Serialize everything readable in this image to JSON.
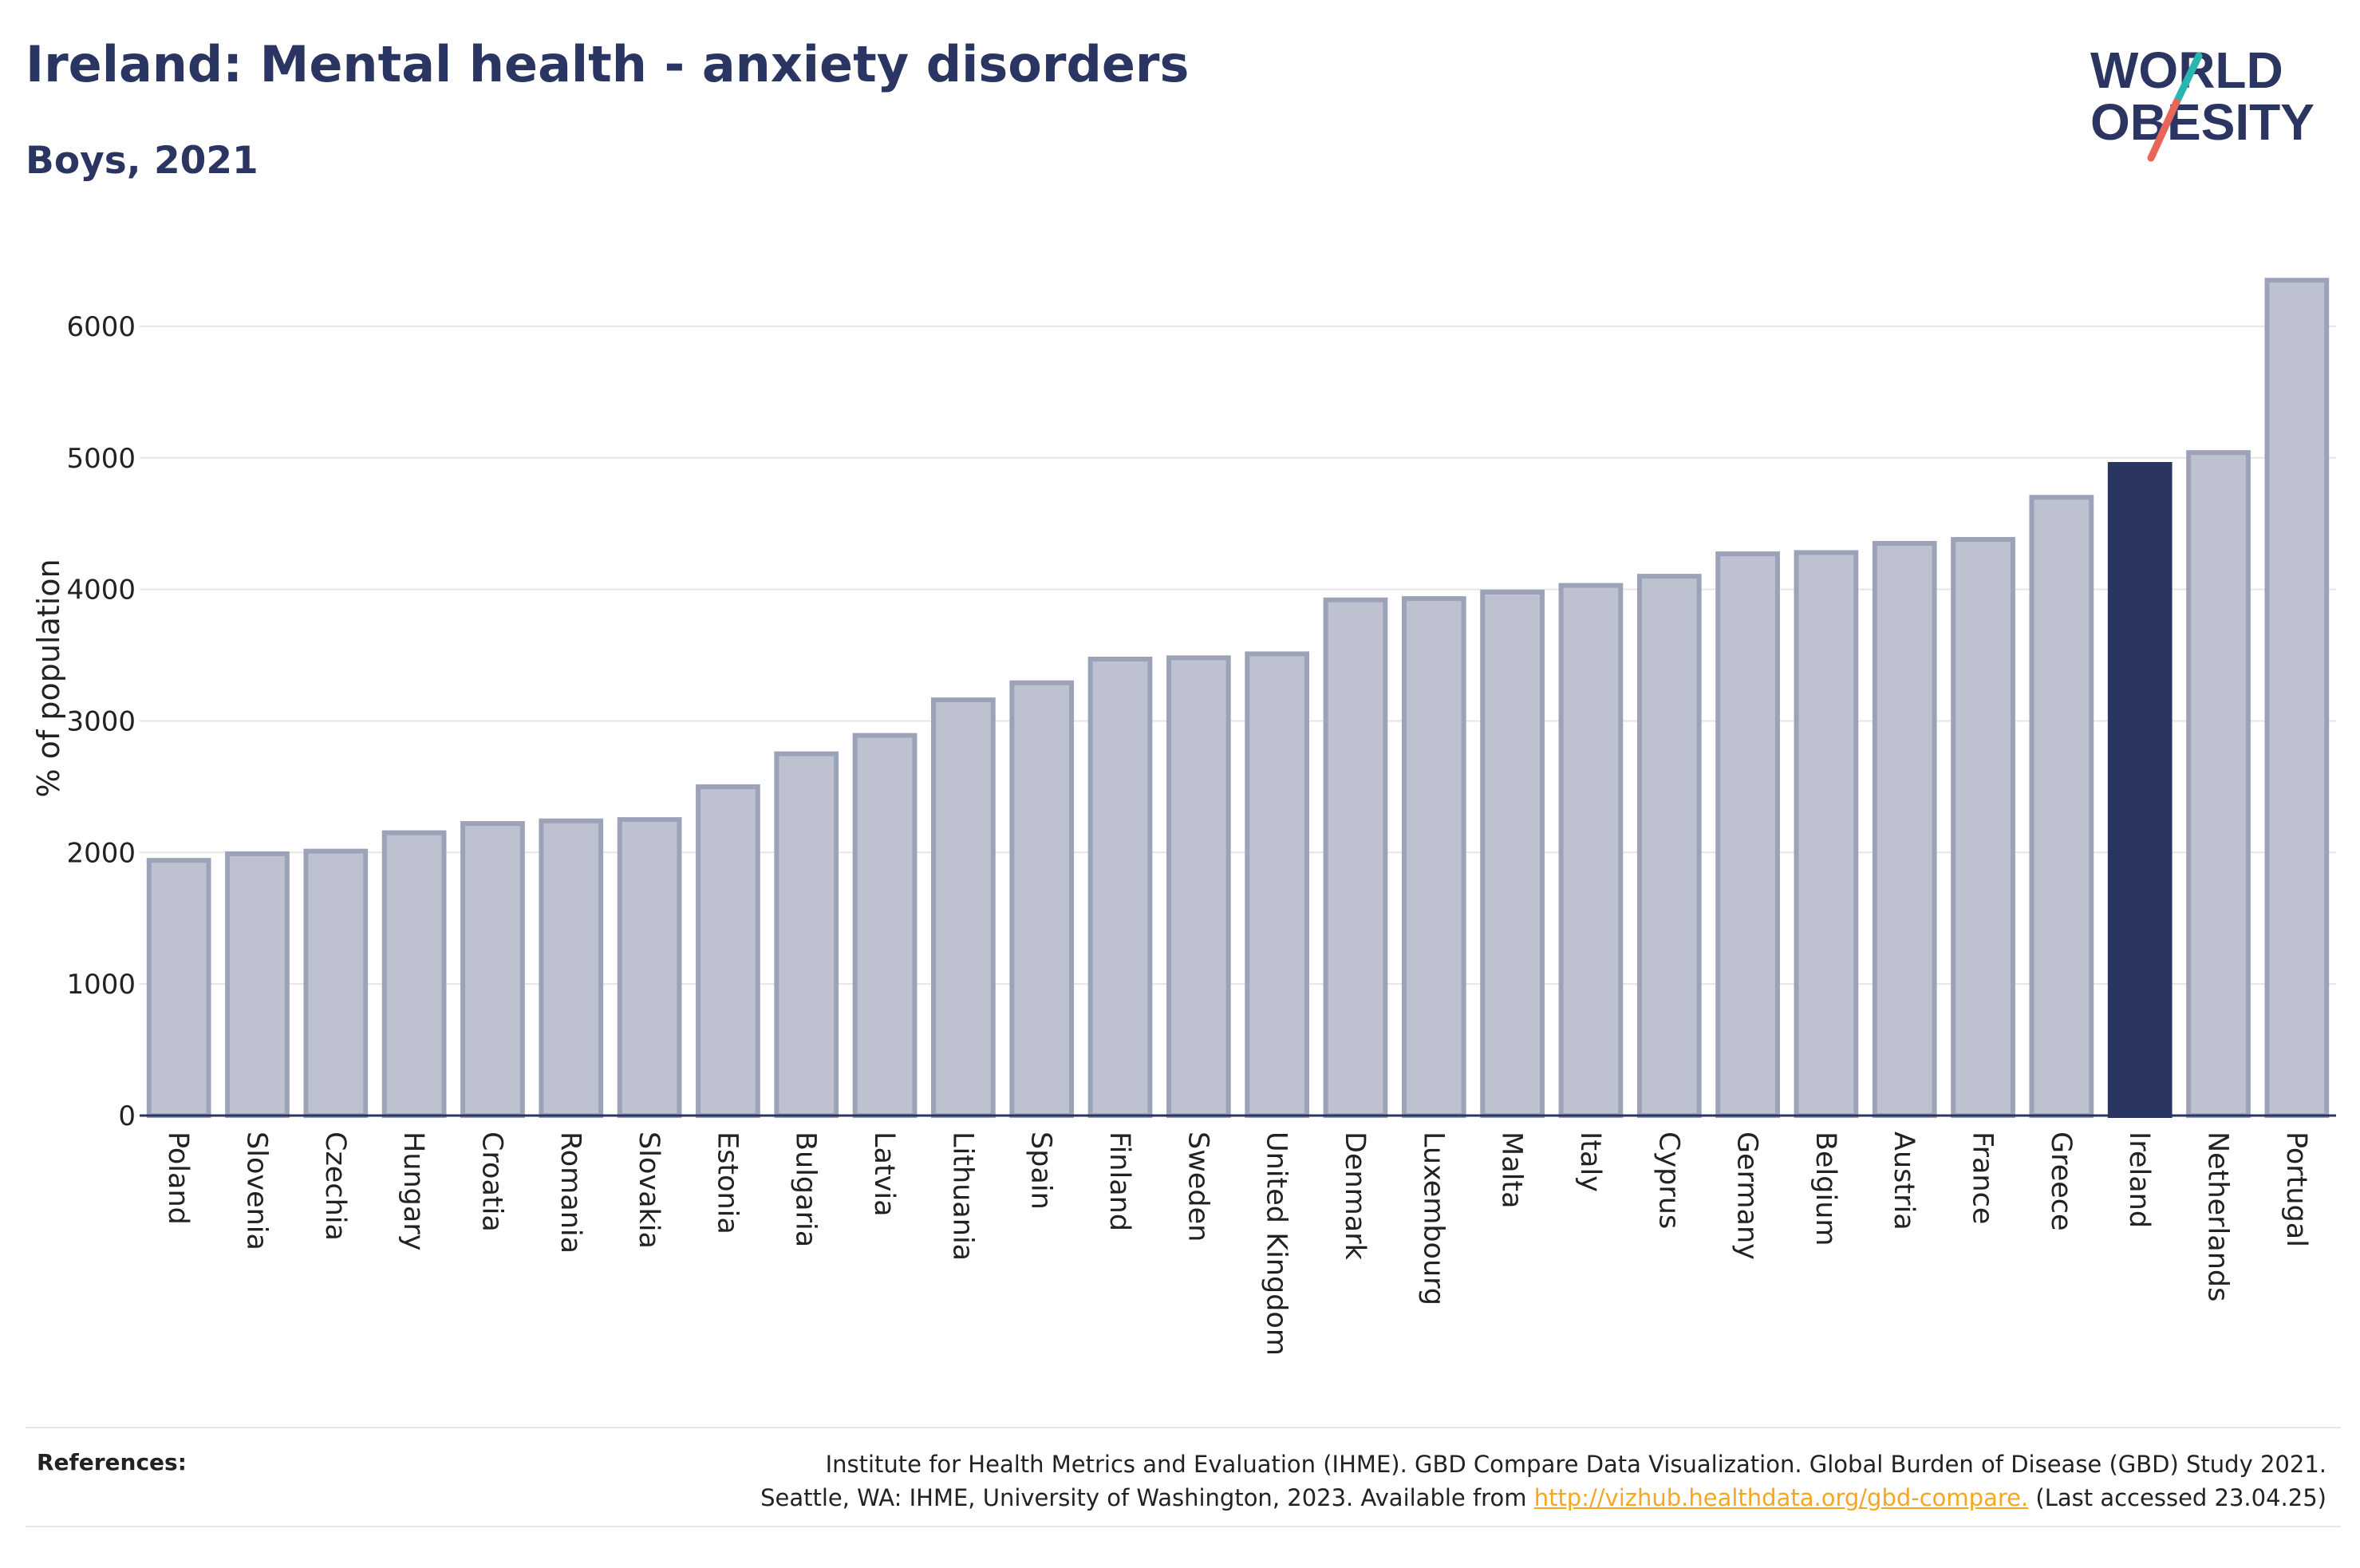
{
  "header": {
    "title": "Ireland: Mental health - anxiety disorders",
    "subtitle": "Boys, 2021"
  },
  "logo": {
    "line1": "WORLD",
    "line2": "OBESITY",
    "colors": {
      "text": "#2b3561",
      "slash_teal": "#2bb5b0",
      "slash_red": "#e8655a"
    }
  },
  "chart_data": {
    "type": "bar",
    "ylabel": "% of population",
    "xlabel": "",
    "ylim": [
      0,
      6600
    ],
    "yticks": [
      0,
      1000,
      2000,
      3000,
      4000,
      5000,
      6000
    ],
    "grid": true,
    "highlight": "Ireland",
    "colors": {
      "bar": "#bec2d0",
      "bar_edge": "#9ca2b8",
      "highlight": "#2b3561",
      "grid": "#e6e6e6",
      "axis": "#2b3561"
    },
    "categories": [
      "Poland",
      "Slovenia",
      "Czechia",
      "Hungary",
      "Croatia",
      "Romania",
      "Slovakia",
      "Estonia",
      "Bulgaria",
      "Latvia",
      "Lithuania",
      "Spain",
      "Finland",
      "Sweden",
      "United Kingdom",
      "Denmark",
      "Luxembourg",
      "Malta",
      "Italy",
      "Cyprus",
      "Germany",
      "Belgium",
      "Austria",
      "France",
      "Greece",
      "Ireland",
      "Netherlands",
      "Portugal"
    ],
    "values": [
      1940,
      1990,
      2010,
      2150,
      2220,
      2240,
      2250,
      2500,
      2750,
      2890,
      3160,
      3290,
      3470,
      3480,
      3510,
      3920,
      3930,
      3980,
      4030,
      4100,
      4270,
      4280,
      4350,
      4380,
      4700,
      4950,
      5040,
      6350
    ]
  },
  "references": {
    "label": "References:",
    "line1": "Institute for Health Metrics and Evaluation (IHME). GBD Compare Data Visualization. Global Burden of Disease (GBD) Study 2021.",
    "line2_prefix": "Seattle, WA: IHME, University of Washington, 2023. Available from ",
    "link": "http://vizhub.healthdata.org/gbd-compare.",
    "line2_suffix": " (Last accessed 23.04.25)"
  }
}
